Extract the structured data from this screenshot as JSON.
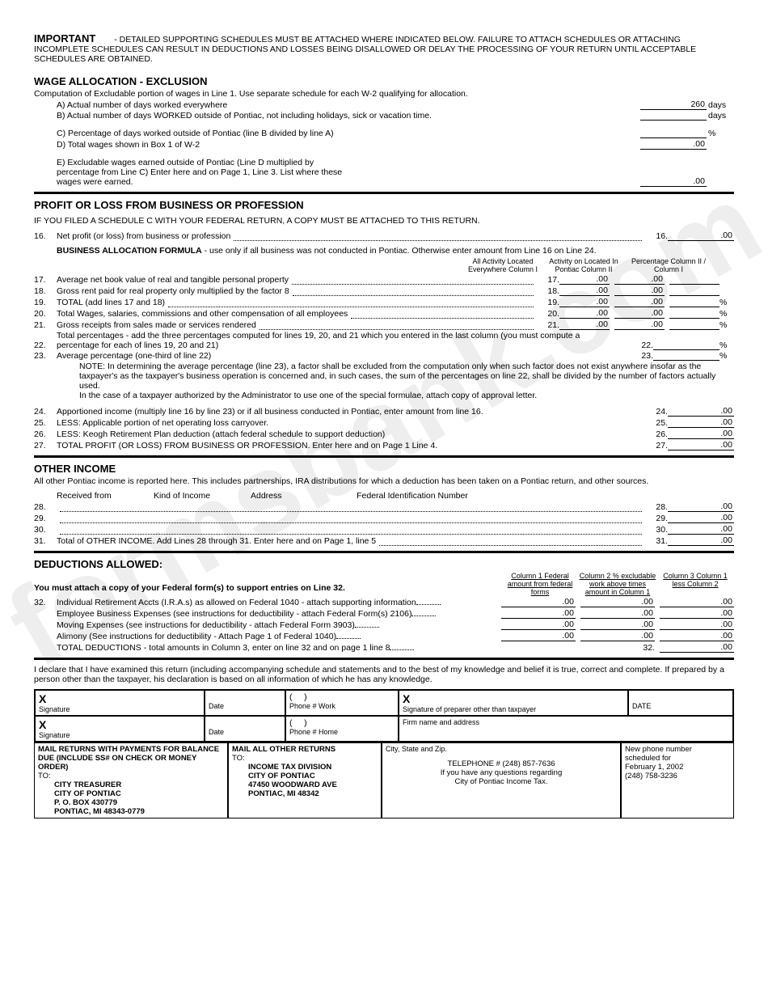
{
  "important": {
    "label": "IMPORTANT",
    "text": "- DETAILED SUPPORTING SCHEDULES MUST BE ATTACHED WHERE INDICATED BELOW. FAILURE TO ATTACH SCHEDULES OR ATTACHING INCOMPLETE SCHEDULES CAN RESULT IN DEDUCTIONS AND LOSSES BEING DISALLOWED OR DELAY THE PROCESSING OF YOUR RETURN UNTIL ACCEPTABLE SCHEDULES ARE OBTAINED."
  },
  "wage": {
    "title": "WAGE ALLOCATION - EXCLUSION",
    "sub": "Computation of Excludable portion of wages in Line 1. Use separate schedule for each W-2 qualifying for allocation.",
    "a": "A) Actual number of days worked everywhere",
    "a_val": "260",
    "a_unit": "days",
    "b": "B) Actual number of days WORKED outside of Pontiac, not including holidays, sick or vacation time.",
    "b_unit": "days",
    "c": "C) Percentage of days worked outside of Pontiac (line B divided by line A)",
    "c_unit": "%",
    "d": "D) Total wages shown in Box 1 of W-2",
    "d_val": ".00",
    "e": "E) Excludable wages earned outside of Pontiac (Line D multiplied by percentage from Line C) Enter here and on Page 1, Line 3. List where these wages were earned.",
    "e_val": ".00"
  },
  "profit": {
    "title": "PROFIT OR LOSS FROM BUSINESS OR PROFESSION",
    "sub": "IF YOU FILED A SCHEDULE C WITH YOUR FEDERAL RETURN, A COPY MUST BE ATTACHED TO THIS RETURN.",
    "l16_txt": "Net profit (or loss) from business or profession",
    "l16_val": ".00",
    "formula": "BUSINESS ALLOCATION FORMULA - use only if all business was not conducted in Pontiac. Otherwise enter amount from Line 16 on Line 24.",
    "hdr1": "All Activity Located Everywhere Column I",
    "hdr2": "Activity on Located In Pontiac Column II",
    "hdr3": "Percentage Column II / Column I",
    "rows": [
      {
        "n": "17.",
        "t": "Average net book value of real and tangible personal property",
        "c1": ".00",
        "c2": ".00",
        "c3": ""
      },
      {
        "n": "18.",
        "t": "Gross rent paid for real property only multiplied by the factor 8",
        "c1": ".00",
        "c2": ".00",
        "c3": ""
      },
      {
        "n": "19.",
        "t": "TOTAL (add lines 17 and 18)",
        "c1": ".00",
        "c2": ".00",
        "c3": "",
        "pct": "%"
      },
      {
        "n": "20.",
        "t": "Total Wages, salaries, commissions and other compensation of all employees",
        "c1": ".00",
        "c2": ".00",
        "c3": "",
        "pct": "%"
      },
      {
        "n": "21.",
        "t": "Gross receipts from sales made or services rendered",
        "c1": ".00",
        "c2": ".00",
        "c3": "",
        "pct": "%"
      }
    ],
    "l22_n": "22.",
    "l22_t": "Total percentages - add the three percentages computed for lines 19, 20, and 21 which you entered in the last column (you must compute a percentage for each of lines 19, 20 and 21)",
    "l22_pct": "%",
    "l23_n": "23.",
    "l23_t": "Average percentage (one-third of line 22)",
    "l23_pct": "%",
    "note": "NOTE: In determining the average percentage (line 23), a factor shall be excluded from the computation only when such factor does not exist anywhere insofar as the taxpayer's as the taxpayer's business operation is concerned and, in such cases, the sum of the percentages on line 22, shall be divided by the number of factors actually used.",
    "note2": "In the case of a taxpayer authorized by the Administrator to use one of the special formulae, attach copy of approval letter.",
    "brows": [
      {
        "n": "24.",
        "t": "Apportioned income (multiply line 16 by line 23) or if all business conducted in Pontiac, enter amount from line 16.",
        "v": ".00"
      },
      {
        "n": "25.",
        "t": "LESS: Applicable portion of net operating loss carryover.",
        "v": ".00"
      },
      {
        "n": "26.",
        "t": "LESS: Keogh Retirement Plan deduction (attach federal schedule to support deduction)",
        "v": ".00"
      },
      {
        "n": "27.",
        "t": "TOTAL PROFIT (OR LOSS) FROM BUSINESS OR PROFESSION. Enter here and on Page 1 Line 4.",
        "v": ".00"
      }
    ]
  },
  "other": {
    "title": "OTHER INCOME",
    "sub": "All other Pontiac income is reported here. This includes partnerships, IRA distributions for which a deduction has been taken on a Pontiac return, and other sources.",
    "h1": "Received from",
    "h2": "Kind of Income",
    "h3": "Address",
    "h4": "Federal Identification Number",
    "nums": [
      "28.",
      "29.",
      "30.",
      "31."
    ],
    "l31_t": "Total of OTHER INCOME. Add Lines 28 through 31. Enter here and on Page 1, line 5",
    "vals": [
      ".00",
      ".00",
      ".00",
      ".00"
    ]
  },
  "ded": {
    "title": "DEDUCTIONS ALLOWED:",
    "sub": "You must attach a copy of your Federal form(s) to support entries on Line 32.",
    "h1": "Column 1 Federal amount from federal forms",
    "h2": "Column 2 % excludable work above times amount in Column 1",
    "h3": "Column 3 Column 1 less Column 2",
    "rows": [
      {
        "n": "32.",
        "t": "Individual Retirement Accts (I.R.A.s) as allowed on Federal 1040 - attach supporting information"
      },
      {
        "n": "",
        "t": "Employee Business Expenses (see instructions for deductibility - attach Federal Form(s) 2106)"
      },
      {
        "n": "",
        "t": "Moving Expenses (see instructions for deductibility - attach Federal Form 3903)"
      },
      {
        "n": "",
        "t": "Alimony (See instructions for deductibility - Attach Page 1 of Federal 1040)"
      },
      {
        "n": "",
        "t": "TOTAL DEDUCTIONS - total amounts in Column 3, enter on line 32 and on page 1 line 8"
      }
    ]
  },
  "decl": "I declare that I have examined this return (including accompanying schedule and statements and to the best of my knowledge and belief it is true, correct and complete. If prepared by a person other than the taxpayer, his declaration is based on all information of which he has any knowledge.",
  "sig": {
    "s1": "Signature",
    "d": "Date",
    "pw": "Phone # Work",
    "ph": "Phone # Home",
    "s2": "Signature of preparer other than taxpayer",
    "d2": "DATE",
    "fn": "Firm name and address",
    "csz": "City, State and Zip."
  },
  "mail": {
    "m1": "MAIL RETURNS WITH PAYMENTS FOR BALANCE DUE (INCLUDE SS# ON CHECK OR MONEY ORDER)",
    "a1": [
      "TO:",
      "CITY TREASURER",
      "CITY OF PONTIAC",
      "P. O. BOX 430779",
      "PONTIAC, MI 48343-0779"
    ],
    "m2": "MAIL ALL OTHER RETURNS",
    "a2": [
      "TO:",
      "INCOME TAX DIVISION",
      "CITY OF PONTIAC",
      "47450 WOODWARD AVE",
      "PONTIAC, MI 48342"
    ],
    "info": [
      "TELEPHONE # (248) 857-7636",
      "If you have any questions regarding",
      "City of Pontiac Income Tax."
    ],
    "new": [
      "New phone number",
      "scheduled for",
      "February 1, 2002",
      "(248) 758-3236"
    ]
  }
}
